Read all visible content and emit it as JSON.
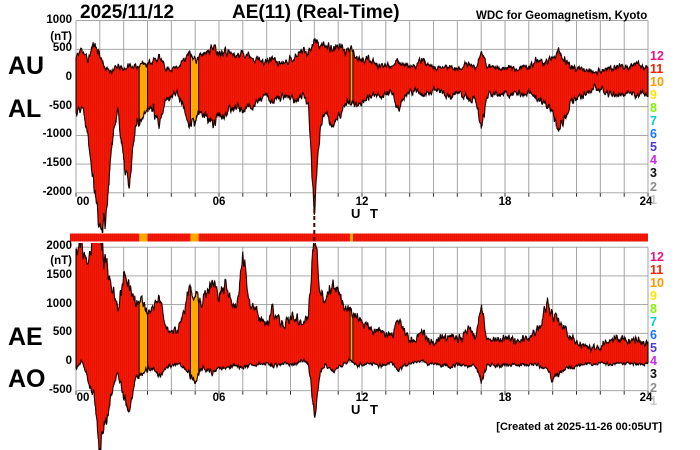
{
  "header": {
    "date": "2025/11/12",
    "title": "AE(11) (Real-Time)",
    "source": "WDC for Geomagnetism, Kyoto"
  },
  "footer": {
    "created": "[Created at 2025-11-26 00:05UT]"
  },
  "axes": {
    "unit_label": "(nT)",
    "x_label": "U T",
    "x_ticks": [
      "00",
      "06",
      "12",
      "18",
      "24"
    ],
    "x_tick_hours": [
      0,
      6,
      12,
      18,
      24
    ]
  },
  "panels": [
    {
      "name": "upper",
      "left_labels": [
        "AU",
        "AL"
      ],
      "y_ticks": [
        1000,
        500,
        0,
        -500,
        -1000,
        -1500,
        -2000
      ],
      "ylim": [
        -2000,
        1000
      ]
    },
    {
      "name": "lower",
      "left_labels": [
        "AE",
        "AO"
      ],
      "y_ticks": [
        2000,
        1500,
        1000,
        500,
        0,
        -500
      ],
      "ylim": [
        -500,
        2000
      ]
    }
  ],
  "legend": {
    "values": [
      12,
      11,
      10,
      9,
      8,
      7,
      6,
      5,
      4,
      3,
      2,
      1
    ],
    "colors": [
      "#f01480",
      "#ff2000",
      "#ff9800",
      "#ffe400",
      "#80f000",
      "#00d0c8",
      "#1874f8",
      "#5038d0",
      "#d028f0",
      "#101010",
      "#8c8c8c",
      "#c6c6c6"
    ]
  },
  "colors": {
    "fill": "#fb1703",
    "outline": "#190000",
    "grid": "#9c9c9c",
    "anomaly": "#ffa800"
  },
  "status_bar": {
    "normal_color": "#fb1703",
    "anomaly_color": "#ffa800",
    "anomalies": [
      {
        "t0": 2.65,
        "t1": 3.0
      },
      {
        "t0": 4.8,
        "t1": 5.15
      },
      {
        "t0": 11.5,
        "t1": 11.62
      }
    ]
  },
  "offscale_markers": [
    {
      "panel": "upper",
      "t": 10.0
    }
  ],
  "chart_data": [
    {
      "type": "area",
      "panel": "upper",
      "title": "AU / AL auroral electrojet indices",
      "x_start": 0,
      "x_end": 24,
      "x_step_hours": 0.25,
      "x_unit": "hour UT",
      "ylim": [
        -2000,
        1000
      ],
      "y_unit": "nT",
      "grid": "on",
      "series": [
        {
          "name": "AU",
          "values": [
            350,
            520,
            300,
            620,
            400,
            150,
            120,
            200,
            150,
            220,
            180,
            260,
            250,
            300,
            360,
            180,
            150,
            200,
            300,
            420,
            320,
            380,
            480,
            550,
            450,
            500,
            420,
            380,
            450,
            400,
            350,
            300,
            280,
            350,
            250,
            300,
            320,
            380,
            500,
            450,
            650,
            550,
            600,
            500,
            560,
            480,
            500,
            350,
            300,
            350,
            250,
            200,
            250,
            220,
            280,
            250,
            200,
            180,
            350,
            200,
            180,
            150,
            200,
            180,
            150,
            200,
            250,
            180,
            460,
            200,
            180,
            150,
            200,
            180,
            150,
            200,
            180,
            300,
            250,
            300,
            350,
            450,
            300,
            200,
            180,
            150,
            130,
            100,
            120,
            150,
            180,
            200,
            180,
            200,
            250,
            180,
            220
          ]
        },
        {
          "name": "AL",
          "values": [
            -600,
            -470,
            -940,
            -1800,
            -2650,
            -2400,
            -1200,
            -500,
            -1500,
            -1900,
            -800,
            -700,
            -500,
            -550,
            -880,
            -400,
            -300,
            -250,
            -500,
            -800,
            -750,
            -600,
            -700,
            -820,
            -600,
            -700,
            -550,
            -450,
            -600,
            -500,
            -450,
            -350,
            -300,
            -450,
            -350,
            -300,
            -350,
            -400,
            -300,
            -450,
            -2400,
            -800,
            -600,
            -900,
            -700,
            -500,
            -400,
            -450,
            -400,
            -350,
            -300,
            -350,
            -300,
            -250,
            -600,
            -350,
            -250,
            -200,
            -300,
            -250,
            -200,
            -250,
            -300,
            -350,
            -250,
            -300,
            -400,
            -300,
            -850,
            -300,
            -250,
            -300,
            -250,
            -300,
            -250,
            -300,
            -250,
            -350,
            -400,
            -500,
            -600,
            -880,
            -700,
            -450,
            -350,
            -300,
            -250,
            -180,
            -200,
            -250,
            -280,
            -300,
            -250,
            -280,
            -320,
            -250,
            -280
          ]
        }
      ]
    },
    {
      "type": "area",
      "panel": "lower",
      "title": "AE / AO auroral electrojet indices",
      "x_start": 0,
      "x_end": 24,
      "x_step_hours": 0.25,
      "x_unit": "hour UT",
      "ylim": [
        -500,
        2000
      ],
      "y_unit": "nT",
      "grid": "on",
      "series": [
        {
          "name": "AE",
          "values": [
            1900,
            2050,
            1600,
            2350,
            2100,
            1700,
            1300,
            900,
            1500,
            1350,
            1000,
            1100,
            850,
            950,
            1150,
            650,
            500,
            550,
            800,
            1250,
            1150,
            1050,
            1250,
            1400,
            1150,
            1300,
            1050,
            900,
            1850,
            1100,
            900,
            750,
            650,
            900,
            700,
            650,
            750,
            800,
            650,
            800,
            2400,
            1200,
            1100,
            1300,
            1200,
            1000,
            900,
            800,
            700,
            600,
            500,
            550,
            500,
            450,
            800,
            550,
            400,
            350,
            550,
            400,
            350,
            380,
            450,
            480,
            380,
            450,
            600,
            420,
            950,
            400,
            380,
            400,
            380,
            420,
            350,
            420,
            380,
            550,
            600,
            1050,
            800,
            750,
            600,
            420,
            350,
            300,
            280,
            220,
            250,
            350,
            400,
            420,
            380,
            350,
            420,
            330,
            380
          ]
        },
        {
          "name": "AO",
          "values": [
            -120,
            20,
            -300,
            -600,
            -1500,
            -1050,
            -550,
            -150,
            -650,
            -850,
            -300,
            -200,
            -120,
            -130,
            -250,
            -100,
            -70,
            -30,
            -100,
            -200,
            -350,
            -120,
            -150,
            -180,
            -100,
            -120,
            -80,
            -50,
            -100,
            -60,
            -50,
            -30,
            -20,
            -60,
            -50,
            -20,
            -40,
            -30,
            50,
            -50,
            -900,
            -150,
            -50,
            -180,
            -100,
            -30,
            30,
            -60,
            -50,
            -10,
            -30,
            -70,
            -30,
            -20,
            -160,
            -60,
            -30,
            -10,
            20,
            -30,
            -20,
            -50,
            -60,
            -90,
            -50,
            -60,
            -80,
            -60,
            -350,
            -50,
            -40,
            -80,
            -30,
            -60,
            -50,
            -60,
            -40,
            -30,
            -80,
            -100,
            -300,
            -200,
            -130,
            -90,
            -80,
            -40,
            -30,
            -30,
            -20,
            -30,
            -30,
            -30,
            -30,
            -30,
            -30,
            -30,
            -30
          ]
        }
      ]
    }
  ]
}
